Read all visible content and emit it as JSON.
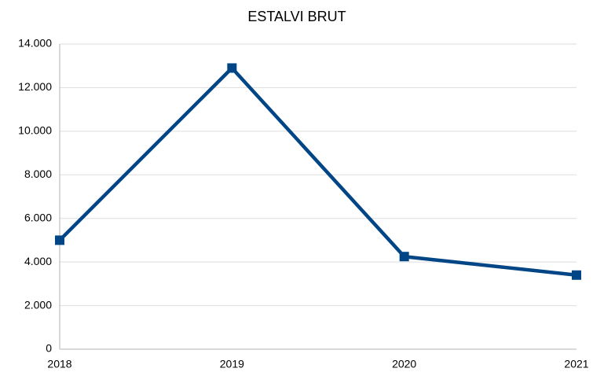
{
  "chart_data": {
    "type": "line",
    "title": "ESTALVI BRUT",
    "categories": [
      "2018",
      "2019",
      "2020",
      "2021"
    ],
    "values": [
      5000,
      12900,
      4250,
      3400
    ],
    "color": "#004586",
    "ylim": [
      0,
      14000
    ],
    "yticks": [
      0,
      {
        "value": 2000,
        "label": "2.000"
      },
      {
        "value": 4000,
        "label": "4.000"
      },
      {
        "value": 6000,
        "label": "6.000"
      },
      {
        "value": 8000,
        "label": "8.000"
      },
      {
        "value": 10000,
        "label": "10.000"
      },
      {
        "value": 12000,
        "label": "12.000"
      },
      {
        "value": 14000,
        "label": "14.000"
      }
    ],
    "grid": true
  }
}
